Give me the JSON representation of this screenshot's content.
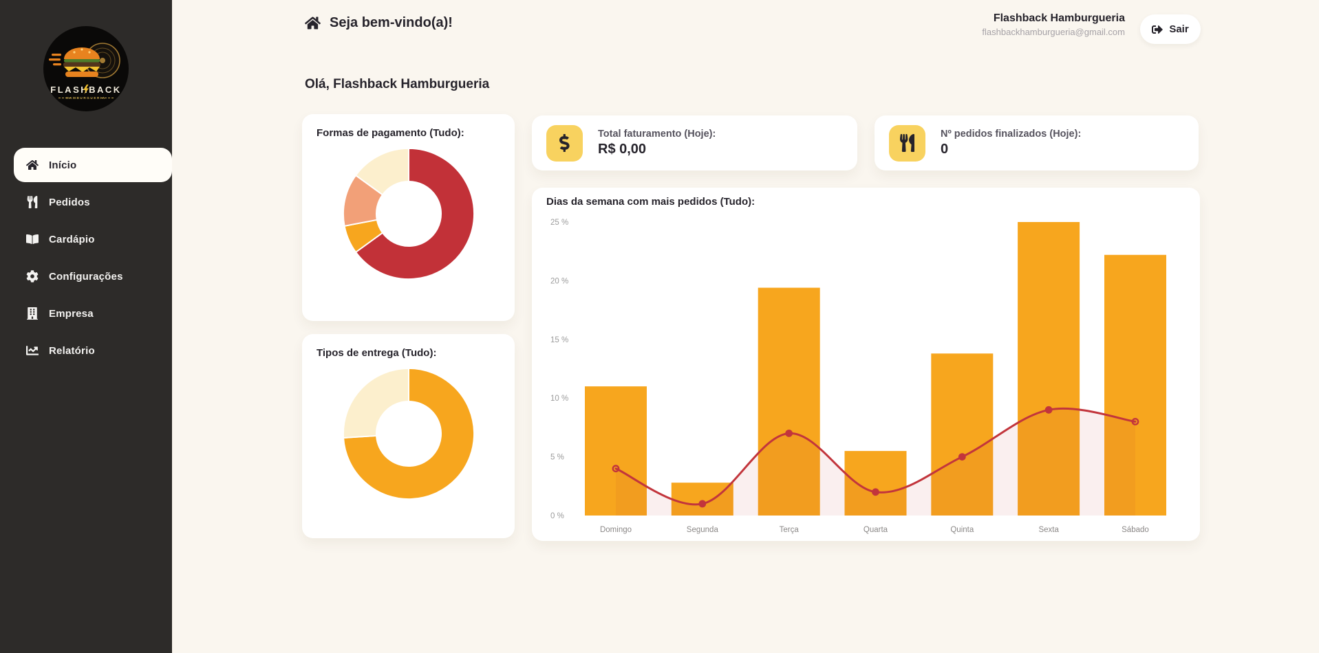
{
  "app": {
    "brand_name": "FLASHBACK",
    "brand_sub": "HAMBURGUERIA"
  },
  "colors": {
    "page_bg": "#FAF6EF",
    "sidebar_bg": "#2D2B29",
    "accent_orange": "#F7A61E",
    "accent_red": "#C23138",
    "salmon": "#F2A078",
    "cream": "#FCEFCD",
    "icon_bg_yellow": "#F8D25F"
  },
  "sidebar": {
    "items": [
      {
        "label": "Início",
        "icon": "home-icon",
        "active": true
      },
      {
        "label": "Pedidos",
        "icon": "utensils-icon",
        "active": false
      },
      {
        "label": "Cardápio",
        "icon": "book-open-icon",
        "active": false
      },
      {
        "label": "Configurações",
        "icon": "gear-icon",
        "active": false
      },
      {
        "label": "Empresa",
        "icon": "building-icon",
        "active": false
      },
      {
        "label": "Relatório",
        "icon": "chart-line-icon",
        "active": false
      }
    ]
  },
  "header": {
    "welcome": "Seja bem-vindo(a)!",
    "user_name": "Flashback Hamburgueria",
    "user_email": "flashbackhamburgueria@gmail.com",
    "logout_label": "Sair"
  },
  "main": {
    "greeting": "Olá, Flashback Hamburgueria",
    "stats": [
      {
        "label": "Total faturamento (Hoje):",
        "value": "R$ 0,00",
        "icon": "dollar-sign-icon"
      },
      {
        "label": "Nº pedidos finalizados (Hoje):",
        "value": "0",
        "icon": "utensils-icon"
      }
    ]
  },
  "chart_data": [
    {
      "type": "pie",
      "donut": true,
      "title": "Formas de pagamento (Tudo):",
      "legend": "none",
      "slices": [
        {
          "pct": 65,
          "color": "#C23138"
        },
        {
          "pct": 7,
          "color": "#F7A61E"
        },
        {
          "pct": 13,
          "color": "#F2A078"
        },
        {
          "pct": 15,
          "color": "#FCEFCD"
        }
      ]
    },
    {
      "type": "pie",
      "donut": true,
      "title": "Tipos de entrega (Tudo):",
      "legend": "none",
      "slices": [
        {
          "pct": 74,
          "color": "#F7A61E"
        },
        {
          "pct": 26,
          "color": "#FCEFCD"
        }
      ]
    },
    {
      "type": "bar",
      "title": "Dias da semana com mais pedidos (Tudo):",
      "categories": [
        "Domingo",
        "Segunda",
        "Terça",
        "Quarta",
        "Quinta",
        "Sexta",
        "Sábado"
      ],
      "series": [
        {
          "name": "pedidos-por-dia",
          "type": "bar",
          "values": [
            11,
            2.8,
            19.4,
            5.5,
            13.8,
            25,
            22.2
          ],
          "color": "#F7A61E"
        },
        {
          "name": "tendencia",
          "type": "line",
          "values": [
            4,
            1,
            7,
            2,
            5,
            9,
            8
          ],
          "color": "#C2353C",
          "area_fill": "rgba(194,49,57,0.08)"
        }
      ],
      "yticks": [
        "0 %",
        "5 %",
        "10 %",
        "15 %",
        "20 %",
        "25 %"
      ],
      "ylim": [
        0,
        25
      ],
      "grid": false,
      "legend": "none"
    }
  ]
}
